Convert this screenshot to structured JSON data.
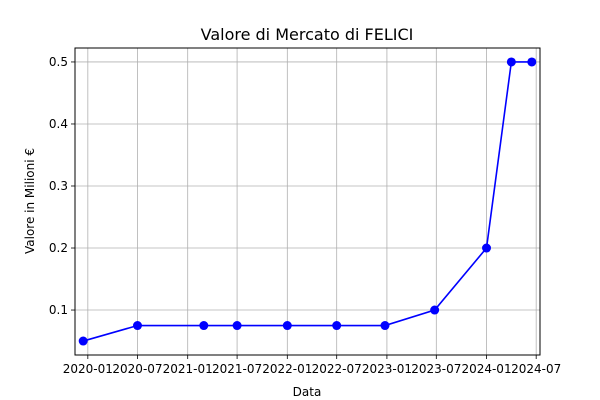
{
  "chart_data": {
    "type": "line",
    "title": "Valore di Mercato di FELICI",
    "xlabel": "Data",
    "ylabel": "Valore in Milioni €",
    "x": [
      "2019-12-15",
      "2020-07-01",
      "2021-03-01",
      "2021-07-01",
      "2022-01-01",
      "2022-07-01",
      "2022-12-25",
      "2023-06-25",
      "2024-01-01",
      "2024-04-01",
      "2024-06-15"
    ],
    "series": [
      {
        "values": [
          0.05,
          0.075,
          0.075,
          0.075,
          0.075,
          0.075,
          0.075,
          0.1,
          0.2,
          0.5,
          0.5
        ],
        "color": "#0000ff"
      }
    ],
    "xticks": [
      "2020-01",
      "2020-07",
      "2021-01",
      "2021-07",
      "2022-01",
      "2022-07",
      "2023-01",
      "2023-07",
      "2024-01",
      "2024-07"
    ],
    "yticks": [
      0.1,
      0.2,
      0.3,
      0.4,
      0.5
    ],
    "ytick_labels": [
      "0.1",
      "0.2",
      "0.3",
      "0.4",
      "0.5"
    ],
    "xlim": [
      "2019-11-15",
      "2024-07-15"
    ],
    "ylim": [
      0.0275,
      0.5225
    ],
    "grid": true,
    "marker": "circle"
  }
}
